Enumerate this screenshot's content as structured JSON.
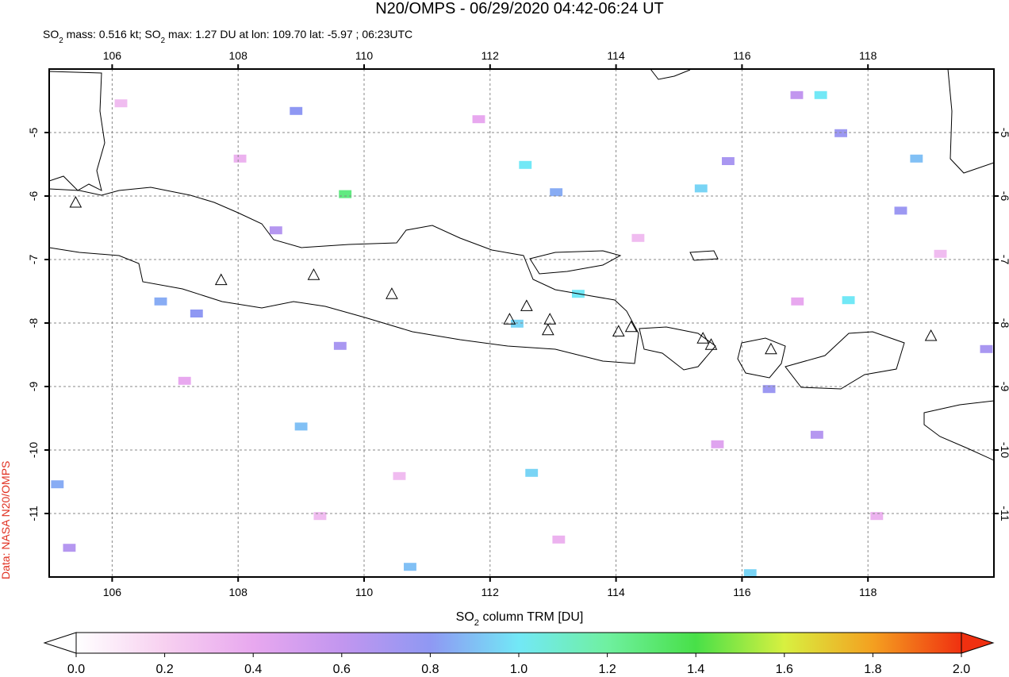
{
  "chart_data": {
    "type": "map",
    "title": "N20/OMPS - 06/29/2020 04:42-06:24 UT",
    "subtitle_parts": [
      "SO",
      "2",
      " mass: 0.516 kt; SO",
      "2",
      " max: 1.27 DU at lon: 109.70 lat: -5.97 ; 06:23UTC"
    ],
    "credit": "Data: NASA N20/OMPS",
    "colorbar_label_parts": [
      "SO",
      "2",
      " column TRM [DU]"
    ],
    "xlim": [
      105,
      120
    ],
    "ylim": [
      -12,
      -4
    ],
    "xticks": [
      106,
      108,
      110,
      112,
      114,
      116,
      118
    ],
    "yticks": [
      -5,
      -6,
      -7,
      -8,
      -9,
      -10,
      -11
    ],
    "grid": true,
    "cell_size": [
      0.2,
      0.125
    ],
    "cells": [
      {
        "lon": 109.7,
        "lat": -5.97,
        "value": 1.27
      },
      {
        "lon": 112.56,
        "lat": -5.51,
        "value": 1.0
      },
      {
        "lon": 117.25,
        "lat": -4.41,
        "value": 1.0
      },
      {
        "lon": 115.35,
        "lat": -5.88,
        "value": 0.95
      },
      {
        "lon": 113.4,
        "lat": -7.54,
        "value": 1.0
      },
      {
        "lon": 117.69,
        "lat": -7.64,
        "value": 1.0
      },
      {
        "lon": 118.77,
        "lat": -5.41,
        "value": 0.9
      },
      {
        "lon": 112.43,
        "lat": -8.01,
        "value": 0.95
      },
      {
        "lon": 112.66,
        "lat": -10.36,
        "value": 0.95
      },
      {
        "lon": 110.73,
        "lat": -11.84,
        "value": 0.9
      },
      {
        "lon": 116.13,
        "lat": -11.94,
        "value": 0.95
      },
      {
        "lon": 109.0,
        "lat": -9.63,
        "value": 0.9
      },
      {
        "lon": 113.05,
        "lat": -5.94,
        "value": 0.85
      },
      {
        "lon": 117.57,
        "lat": -5.01,
        "value": 0.75
      },
      {
        "lon": 118.52,
        "lat": -6.23,
        "value": 0.75
      },
      {
        "lon": 115.78,
        "lat": -5.45,
        "value": 0.7
      },
      {
        "lon": 116.43,
        "lat": -9.04,
        "value": 0.75
      },
      {
        "lon": 117.19,
        "lat": -9.76,
        "value": 0.65
      },
      {
        "lon": 109.62,
        "lat": -8.36,
        "value": 0.7
      },
      {
        "lon": 108.6,
        "lat": -6.54,
        "value": 0.65
      },
      {
        "lon": 105.32,
        "lat": -11.54,
        "value": 0.65
      },
      {
        "lon": 105.13,
        "lat": -10.54,
        "value": 0.85
      },
      {
        "lon": 106.77,
        "lat": -7.66,
        "value": 0.85
      },
      {
        "lon": 107.34,
        "lat": -7.85,
        "value": 0.8
      },
      {
        "lon": 108.92,
        "lat": -4.66,
        "value": 0.8
      },
      {
        "lon": 116.87,
        "lat": -4.41,
        "value": 0.6
      },
      {
        "lon": 119.88,
        "lat": -8.41,
        "value": 0.7
      },
      {
        "lon": 106.14,
        "lat": -4.54,
        "value": 0.3
      },
      {
        "lon": 108.03,
        "lat": -5.41,
        "value": 0.35
      },
      {
        "lon": 110.56,
        "lat": -10.41,
        "value": 0.3
      },
      {
        "lon": 114.35,
        "lat": -6.66,
        "value": 0.3
      },
      {
        "lon": 118.14,
        "lat": -11.04,
        "value": 0.35
      },
      {
        "lon": 111.82,
        "lat": -4.79,
        "value": 0.4
      },
      {
        "lon": 115.61,
        "lat": -9.91,
        "value": 0.45
      },
      {
        "lon": 107.15,
        "lat": -8.91,
        "value": 0.4
      },
      {
        "lon": 119.15,
        "lat": -6.91,
        "value": 0.3
      },
      {
        "lon": 113.09,
        "lat": -11.41,
        "value": 0.35
      },
      {
        "lon": 109.3,
        "lat": -11.04,
        "value": 0.3
      },
      {
        "lon": 116.88,
        "lat": -7.66,
        "value": 0.4
      }
    ],
    "volcanoes": [
      {
        "lon": 105.42,
        "lat": -6.1
      },
      {
        "lon": 107.73,
        "lat": -7.32
      },
      {
        "lon": 109.2,
        "lat": -7.24
      },
      {
        "lon": 110.44,
        "lat": -7.54
      },
      {
        "lon": 112.31,
        "lat": -7.94
      },
      {
        "lon": 112.58,
        "lat": -7.73
      },
      {
        "lon": 112.95,
        "lat": -7.94
      },
      {
        "lon": 112.92,
        "lat": -8.11
      },
      {
        "lon": 114.04,
        "lat": -8.13
      },
      {
        "lon": 114.24,
        "lat": -8.06
      },
      {
        "lon": 115.38,
        "lat": -8.24
      },
      {
        "lon": 115.51,
        "lat": -8.34
      },
      {
        "lon": 116.46,
        "lat": -8.41
      },
      {
        "lon": 119.0,
        "lat": -8.2
      }
    ],
    "colorbar": {
      "lim": [
        0,
        2
      ],
      "ticks": [
        {
          "value": 0,
          "label": "0.0"
        },
        {
          "value": 0.2,
          "label": "0.2"
        },
        {
          "value": 0.4,
          "label": "0.4"
        },
        {
          "value": 0.6,
          "label": "0.6"
        },
        {
          "value": 0.8,
          "label": "0.8"
        },
        {
          "value": 1,
          "label": "1.0"
        },
        {
          "value": 1.2,
          "label": "1.2"
        },
        {
          "value": 1.4,
          "label": "1.4"
        },
        {
          "value": 1.6,
          "label": "1.6"
        },
        {
          "value": 1.8,
          "label": "1.8"
        },
        {
          "value": 2,
          "label": "2.0"
        }
      ],
      "colors": [
        "#ffffff",
        "#f7d0f0",
        "#e8a8ef",
        "#c296ef",
        "#8f98f3",
        "#72e8f6",
        "#6ff0a0",
        "#48e048",
        "#d8f040",
        "#f4a020",
        "#f03010"
      ]
    }
  }
}
